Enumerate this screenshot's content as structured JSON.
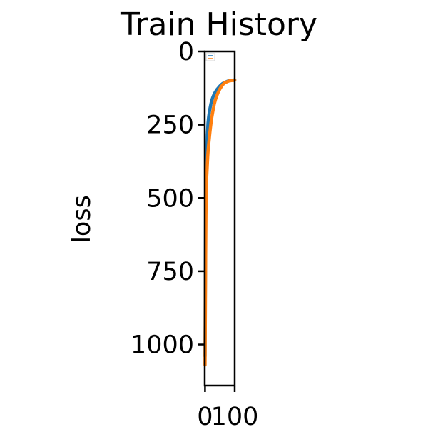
{
  "chart_data": {
    "type": "line",
    "title": "Train History",
    "xlabel": "",
    "ylabel": "loss",
    "xlim": [
      -1,
      100
    ],
    "ylim": [
      1140,
      0
    ],
    "y_inverted": true,
    "xticks": [
      0,
      100
    ],
    "xtick_labels": [
      "0",
      "100"
    ],
    "yticks": [
      0,
      250,
      500,
      750,
      1000
    ],
    "ytick_labels": [
      "0",
      "250",
      "500",
      "750",
      "1000"
    ],
    "grid": false,
    "legend": {
      "placement": "top-left",
      "entries": [
        {
          "color": "#1f77b4"
        },
        {
          "color": "#ff7f0e"
        }
      ]
    },
    "series": [
      {
        "color": "#1f77b4",
        "x": [
          0,
          1,
          2,
          3,
          4,
          5,
          6,
          7,
          8,
          9,
          10,
          12,
          14,
          16,
          18,
          20,
          22,
          25,
          28,
          31,
          35,
          40,
          45,
          50,
          55,
          60,
          65,
          70,
          75,
          80,
          85,
          90,
          95,
          100
        ],
        "y": [
          1040,
          800,
          560,
          470,
          420,
          380,
          340,
          310,
          285,
          265,
          245,
          225,
          210,
          198,
          188,
          178,
          170,
          160,
          152,
          145,
          138,
          130,
          124,
          118,
          113,
          109,
          106,
          104,
          102,
          100,
          99,
          98,
          98,
          97
        ]
      },
      {
        "color": "#ff7f0e",
        "x": [
          0,
          1,
          2,
          3,
          4,
          5,
          6,
          7,
          8,
          9,
          10,
          12,
          14,
          16,
          18,
          20,
          22,
          25,
          28,
          31,
          35,
          40,
          45,
          50,
          55,
          60,
          65,
          70,
          75,
          80,
          85,
          90,
          95,
          100
        ],
        "y": [
          1070,
          900,
          700,
          560,
          470,
          440,
          420,
          400,
          380,
          360,
          345,
          320,
          300,
          280,
          262,
          245,
          230,
          212,
          195,
          180,
          165,
          150,
          138,
          128,
          120,
          113,
          108,
          105,
          103,
          101,
          100,
          99,
          99,
          98
        ]
      }
    ]
  }
}
